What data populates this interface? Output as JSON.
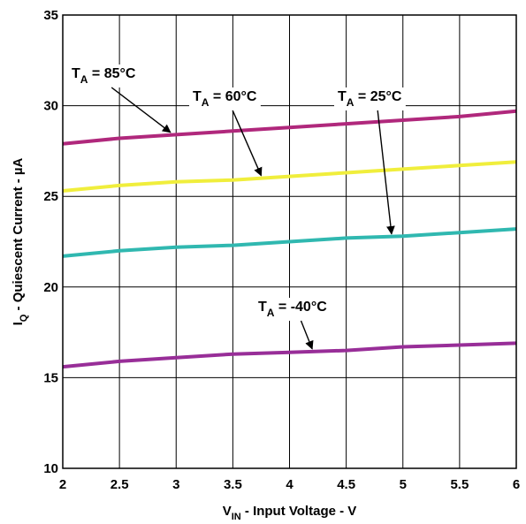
{
  "chart_data": {
    "type": "line",
    "xlabel": {
      "main": "V",
      "sub": "IN",
      "rest": " - Input Voltage - V"
    },
    "ylabel": {
      "main": "I",
      "sub": "Q",
      "rest": " - Quiescent Current - µA"
    },
    "xlim": [
      2,
      6
    ],
    "ylim": [
      10,
      35
    ],
    "x_ticks": [
      "2",
      "2.5",
      "3",
      "3.5",
      "4",
      "4.5",
      "5",
      "5.5",
      "6"
    ],
    "y_ticks": [
      "10",
      "15",
      "20",
      "25",
      "30",
      "35"
    ],
    "grid": true,
    "series": [
      {
        "name": "T_A = 85°C",
        "color": "#b0287c",
        "x": [
          2,
          2.5,
          3,
          3.5,
          4,
          4.5,
          5,
          5.5,
          6
        ],
        "y": [
          27.9,
          28.2,
          28.4,
          28.6,
          28.8,
          29.0,
          29.2,
          29.4,
          29.7
        ]
      },
      {
        "name": "T_A = 60°C",
        "color": "#f0ee3c",
        "x": [
          2,
          2.5,
          3,
          3.5,
          4,
          4.5,
          5,
          5.5,
          6
        ],
        "y": [
          25.3,
          25.6,
          25.8,
          25.9,
          26.1,
          26.3,
          26.5,
          26.7,
          26.9
        ]
      },
      {
        "name": "T_A = 25°C",
        "color": "#30b8b0",
        "x": [
          2,
          2.5,
          3,
          3.5,
          4,
          4.5,
          5,
          5.5,
          6
        ],
        "y": [
          21.7,
          22.0,
          22.2,
          22.3,
          22.5,
          22.7,
          22.8,
          23.0,
          23.2
        ]
      },
      {
        "name": "T_A = -40°C",
        "color": "#982e98",
        "x": [
          2,
          2.5,
          3,
          3.5,
          4,
          4.5,
          5,
          5.5,
          6
        ],
        "y": [
          15.6,
          15.9,
          16.1,
          16.3,
          16.4,
          16.5,
          16.7,
          16.8,
          16.9
        ]
      }
    ],
    "annotations": [
      {
        "main": "T",
        "sub": "A",
        "rest": " = 85°C",
        "series": 0
      },
      {
        "main": "T",
        "sub": "A",
        "rest": " = 60°C",
        "series": 1
      },
      {
        "main": "T",
        "sub": "A",
        "rest": " = 25°C",
        "series": 2
      },
      {
        "main": "T",
        "sub": "A",
        "rest": " = -40°C",
        "series": 3
      }
    ]
  }
}
